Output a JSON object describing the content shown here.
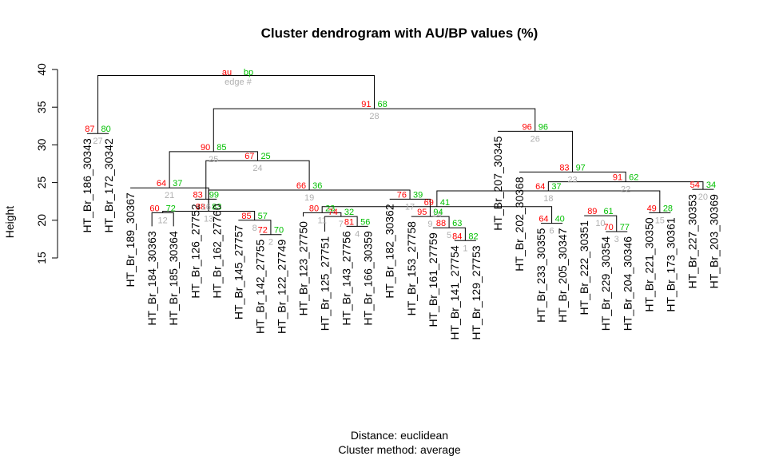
{
  "chart_data": {
    "type": "dendrogram",
    "title": "Cluster dendrogram with AU/BP values (%)",
    "ylabel": "Height",
    "ylim": [
      15,
      40
    ],
    "yticks": [
      15,
      20,
      25,
      30,
      35,
      40
    ],
    "legend": {
      "au": "au",
      "bp": "bp",
      "edge": "edge #"
    },
    "subtitle_lines": [
      "Distance:  euclidean",
      "Cluster method: average"
    ],
    "leaves": [
      "HT_Br_186_30343",
      "HT_Br_172_30342",
      "HT_Br_189_30367",
      "HT_Br_184_30363",
      "HT_Br_185_30364",
      "HT_Br_126_27752",
      "HT_Br_162_27760",
      "HT_Br_145_27757",
      "HT_Br_142_27755",
      "HT_Br_122_27749",
      "HT_Br_123_27750",
      "HT_Br_125_27751",
      "HT_Br_143_27756",
      "HT_Br_166_30359",
      "HT_Br_182_30362",
      "HT_Br_153_27758",
      "HT_Br_161_27759",
      "HT_Br_141_27754",
      "HT_Br_129_27753",
      "HT_Br_207_30345",
      "HT_Br_202_30368",
      "HT_Br_233_30355",
      "HT_Br_205_30347",
      "HT_Br_222_30351",
      "HT_Br_229_30354",
      "HT_Br_204_30346",
      "HT_Br_221_30350",
      "HT_Br_173_30361",
      "HT_Br_227_30353",
      "HT_Br_203_30369"
    ],
    "leaf_tops": [
      31.5,
      31.5,
      24.3,
      19.2,
      19.2,
      22.8,
      22.8,
      20.0,
      18.1,
      18.1,
      20.5,
      18.5,
      19.2,
      19.2,
      22.8,
      20.5,
      19.0,
      17.3,
      17.3,
      31.8,
      26.4,
      19.6,
      19.6,
      20.6,
      18.5,
      18.5,
      21.0,
      21.0,
      24.1,
      24.1
    ],
    "merges": [
      {
        "a": [
          "L",
          17
        ],
        "b": [
          "L",
          18
        ],
        "h": 17.3,
        "au": 84,
        "bp": 82,
        "edge": 1
      },
      {
        "a": [
          "L",
          8
        ],
        "b": [
          "L",
          9
        ],
        "h": 18.1,
        "au": 72,
        "bp": 70,
        "edge": 2
      },
      {
        "a": [
          "L",
          24
        ],
        "b": [
          "L",
          25
        ],
        "h": 18.5,
        "au": 70,
        "bp": 77,
        "edge": 3
      },
      {
        "a": [
          "L",
          12
        ],
        "b": [
          "L",
          13
        ],
        "h": 19.2,
        "au": 81,
        "bp": 56,
        "edge": 4
      },
      {
        "a": [
          "L",
          16
        ],
        "b": [
          "M",
          1
        ],
        "h": 19.0,
        "au": 88,
        "bp": 63,
        "edge": 5
      },
      {
        "a": [
          "L",
          21
        ],
        "b": [
          "L",
          22
        ],
        "h": 19.6,
        "au": 64,
        "bp": 40,
        "edge": 6
      },
      {
        "a": [
          "L",
          11
        ],
        "b": [
          "M",
          4
        ],
        "h": 20.5,
        "au": 74,
        "bp": 32,
        "edge": 7
      },
      {
        "a": [
          "L",
          7
        ],
        "b": [
          "M",
          2
        ],
        "h": 20.0,
        "au": 85,
        "bp": 57,
        "edge": 8
      },
      {
        "a": [
          "L",
          23
        ],
        "b": [
          "M",
          3
        ],
        "h": 20.6,
        "au": 89,
        "bp": 61,
        "edge": 10
      },
      {
        "a": [
          "L",
          10
        ],
        "b": [
          "M",
          7
        ],
        "h": 21.0,
        "au": 80,
        "bp": 23,
        "edge": 11
      },
      {
        "a": [
          "L",
          3
        ],
        "b": [
          "L",
          4
        ],
        "h": 21.0,
        "au": 60,
        "bp": 72,
        "edge": 12
      },
      {
        "a": [
          "M",
          8
        ],
        "b": [
          "M",
          11
        ],
        "h": 21.2,
        "au": 88,
        "bp": 83,
        "edge": 13
      },
      {
        "a": [
          "M",
          6
        ],
        "b": [
          "M",
          10
        ],
        "h": 21.8,
        "au": 69,
        "bp": 41,
        "edge": 14
      },
      {
        "a": [
          "L",
          26
        ],
        "b": [
          "L",
          27
        ],
        "h": 21.0,
        "au": 49,
        "bp": 28,
        "edge": 15
      },
      {
        "a": [
          "L",
          5
        ],
        "b": [
          "L",
          6
        ],
        "h": 22.8,
        "au": 83,
        "bp": 99,
        "edge": 16
      },
      {
        "a": [
          "L",
          15
        ],
        "b": [
          "M",
          5
        ],
        "h": 20.5,
        "au": 95,
        "bp": 94,
        "edge": 9
      },
      {
        "a": [
          "L",
          14
        ],
        "b": [
          "M",
          16
        ],
        "h": 22.8,
        "au": 76,
        "bp": 39,
        "edge": 17
      },
      {
        "a": [
          "M",
          13
        ],
        "b": [
          "M",
          14
        ],
        "h": 23.9,
        "au": 64,
        "bp": 37,
        "edge": 18
      },
      {
        "a": [
          "M",
          12
        ],
        "b": [
          "M",
          17
        ],
        "h": 24.0,
        "au": 66,
        "bp": 36,
        "edge": 19
      },
      {
        "a": [
          "L",
          28
        ],
        "b": [
          "L",
          29
        ],
        "h": 24.1,
        "au": 54,
        "bp": 34,
        "edge": 20
      },
      {
        "a": [
          "L",
          2
        ],
        "b": [
          "M",
          12
        ],
        "h": 24.3,
        "au": 64,
        "bp": 37,
        "edge": 21
      },
      {
        "a": [
          "M",
          18
        ],
        "b": [
          "M",
          20
        ],
        "h": 25.1,
        "au": 91,
        "bp": 62,
        "edge": 22
      },
      {
        "a": [
          "L",
          20
        ],
        "b": [
          "M",
          22
        ],
        "h": 26.4,
        "au": 83,
        "bp": 97,
        "edge": 23
      },
      {
        "a": [
          "M",
          15
        ],
        "b": [
          "M",
          19
        ],
        "h": 27.9,
        "au": 67,
        "bp": 25,
        "edge": 24
      },
      {
        "a": [
          "M",
          21
        ],
        "b": [
          "M",
          24
        ],
        "h": 29.1,
        "au": 90,
        "bp": 85,
        "edge": 25
      },
      {
        "a": [
          "L",
          19
        ],
        "b": [
          "M",
          23
        ],
        "h": 31.8,
        "au": 96,
        "bp": 96,
        "edge": 26
      },
      {
        "a": [
          "L",
          0
        ],
        "b": [
          "L",
          1
        ],
        "h": 31.5,
        "au": 87,
        "bp": 80,
        "edge": 27
      },
      {
        "a": [
          "M",
          25
        ],
        "b": [
          "M",
          26
        ],
        "h": 34.8,
        "au": 91,
        "bp": 68,
        "edge": 28
      },
      {
        "a": [
          "M",
          27
        ],
        "b": [
          "M",
          28
        ],
        "h": 39.2,
        "au": null,
        "bp": null,
        "edge": null
      }
    ]
  }
}
